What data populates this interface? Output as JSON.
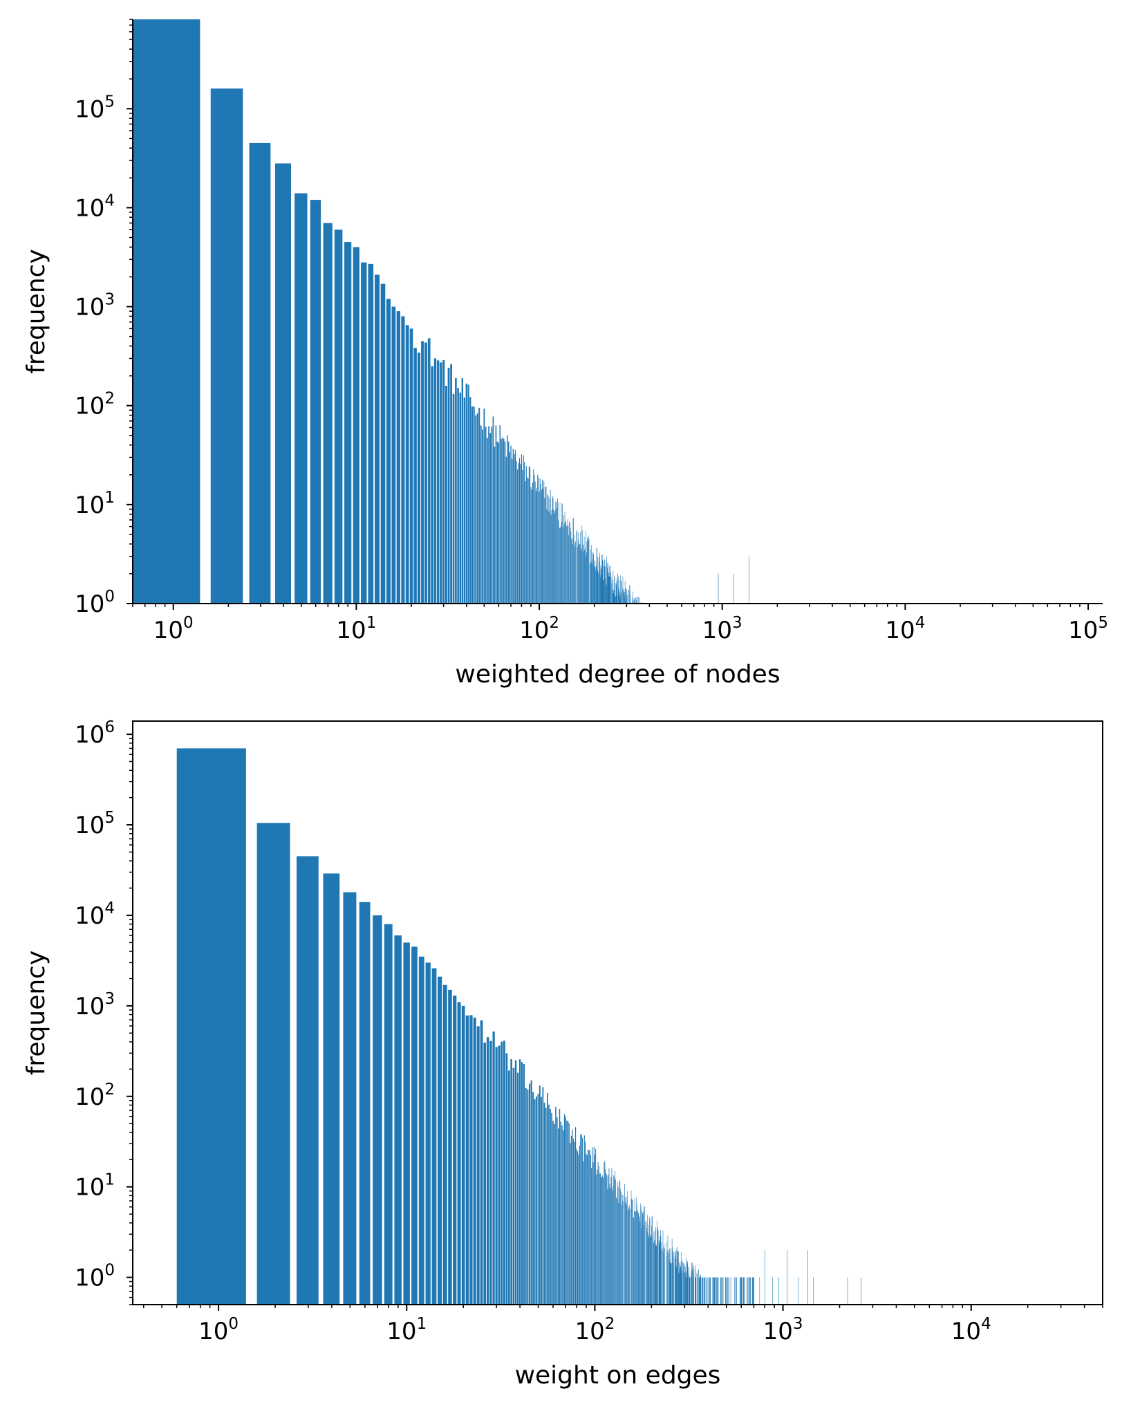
{
  "chart_data": [
    {
      "type": "bar",
      "xscale": "log",
      "yscale": "log",
      "xlabel": "weighted degree of nodes",
      "ylabel": "frequency",
      "xlim": [
        0.6,
        120000
      ],
      "ylim": [
        1,
        800000
      ],
      "xticks": [
        1,
        10,
        100,
        1000,
        10000,
        100000
      ],
      "xtick_labels": [
        {
          "base": "10",
          "exp": "0"
        },
        {
          "base": "10",
          "exp": "1"
        },
        {
          "base": "10",
          "exp": "2"
        },
        {
          "base": "10",
          "exp": "3"
        },
        {
          "base": "10",
          "exp": "4"
        },
        {
          "base": "10",
          "exp": "5"
        }
      ],
      "yticks": [
        1,
        10,
        100,
        1000,
        10000,
        100000
      ],
      "ytick_labels": [
        {
          "base": "10",
          "exp": "0"
        },
        {
          "base": "10",
          "exp": "1"
        },
        {
          "base": "10",
          "exp": "2"
        },
        {
          "base": "10",
          "exp": "3"
        },
        {
          "base": "10",
          "exp": "4"
        },
        {
          "base": "10",
          "exp": "5"
        }
      ],
      "spines": "left-bottom",
      "color": "#1f77b4",
      "bar_width": 0.8,
      "x": [
        1,
        2,
        3,
        4,
        5,
        6,
        7,
        8,
        9,
        10,
        11,
        12,
        13,
        14,
        15,
        16,
        17,
        18,
        19,
        20
      ],
      "values": [
        800000,
        160000,
        45000,
        28000,
        14000,
        12000,
        7000,
        6000,
        4500,
        4000,
        2800,
        2700,
        2100,
        1700,
        1200,
        1000,
        900,
        800,
        650,
        600
      ],
      "tail": {
        "x_start": 21,
        "x_end": 1450,
        "power_slope": -2.3,
        "anchor_x": 20,
        "anchor_y": 600,
        "max_x_dense": 800,
        "sparse": [
          [
            850,
            1
          ],
          [
            900,
            1
          ],
          [
            950,
            2
          ],
          [
            1000,
            1
          ],
          [
            1050,
            1
          ],
          [
            1150,
            2
          ],
          [
            1250,
            1
          ],
          [
            1400,
            3
          ]
        ]
      }
    },
    {
      "type": "bar",
      "xscale": "log",
      "yscale": "log",
      "xlabel": "weight on edges",
      "ylabel": "frequency",
      "xlim": [
        0.35,
        50000
      ],
      "ylim": [
        0.5,
        1400000
      ],
      "xticks": [
        1,
        10,
        100,
        1000,
        10000
      ],
      "xtick_labels": [
        {
          "base": "10",
          "exp": "0"
        },
        {
          "base": "10",
          "exp": "1"
        },
        {
          "base": "10",
          "exp": "2"
        },
        {
          "base": "10",
          "exp": "3"
        },
        {
          "base": "10",
          "exp": "4"
        }
      ],
      "yticks": [
        1,
        10,
        100,
        1000,
        10000,
        100000,
        1000000
      ],
      "ytick_labels": [
        {
          "base": "10",
          "exp": "0"
        },
        {
          "base": "10",
          "exp": "1"
        },
        {
          "base": "10",
          "exp": "2"
        },
        {
          "base": "10",
          "exp": "3"
        },
        {
          "base": "10",
          "exp": "4"
        },
        {
          "base": "10",
          "exp": "5"
        },
        {
          "base": "10",
          "exp": "6"
        }
      ],
      "spines": "box",
      "color": "#1f77b4",
      "bar_width": 0.8,
      "x": [
        1,
        2,
        3,
        4,
        5,
        6,
        7,
        8,
        9,
        10,
        11,
        12,
        13,
        14,
        15,
        16,
        17,
        18,
        19,
        20
      ],
      "values": [
        700000,
        105000,
        45000,
        29000,
        18000,
        14000,
        10000,
        8000,
        6000,
        5000,
        4500,
        3500,
        3000,
        2600,
        2100,
        1700,
        1500,
        1300,
        1100,
        1000
      ],
      "tail": {
        "x_start": 21,
        "x_end": 2600,
        "power_slope": -2.45,
        "anchor_x": 20,
        "anchor_y": 1000,
        "max_x_dense": 700,
        "sparse": [
          [
            750,
            1
          ],
          [
            800,
            2
          ],
          [
            880,
            1
          ],
          [
            950,
            1
          ],
          [
            1050,
            2
          ],
          [
            1200,
            1
          ],
          [
            1350,
            2
          ],
          [
            1450,
            1
          ],
          [
            2200,
            1
          ],
          [
            2600,
            1
          ]
        ]
      }
    }
  ]
}
